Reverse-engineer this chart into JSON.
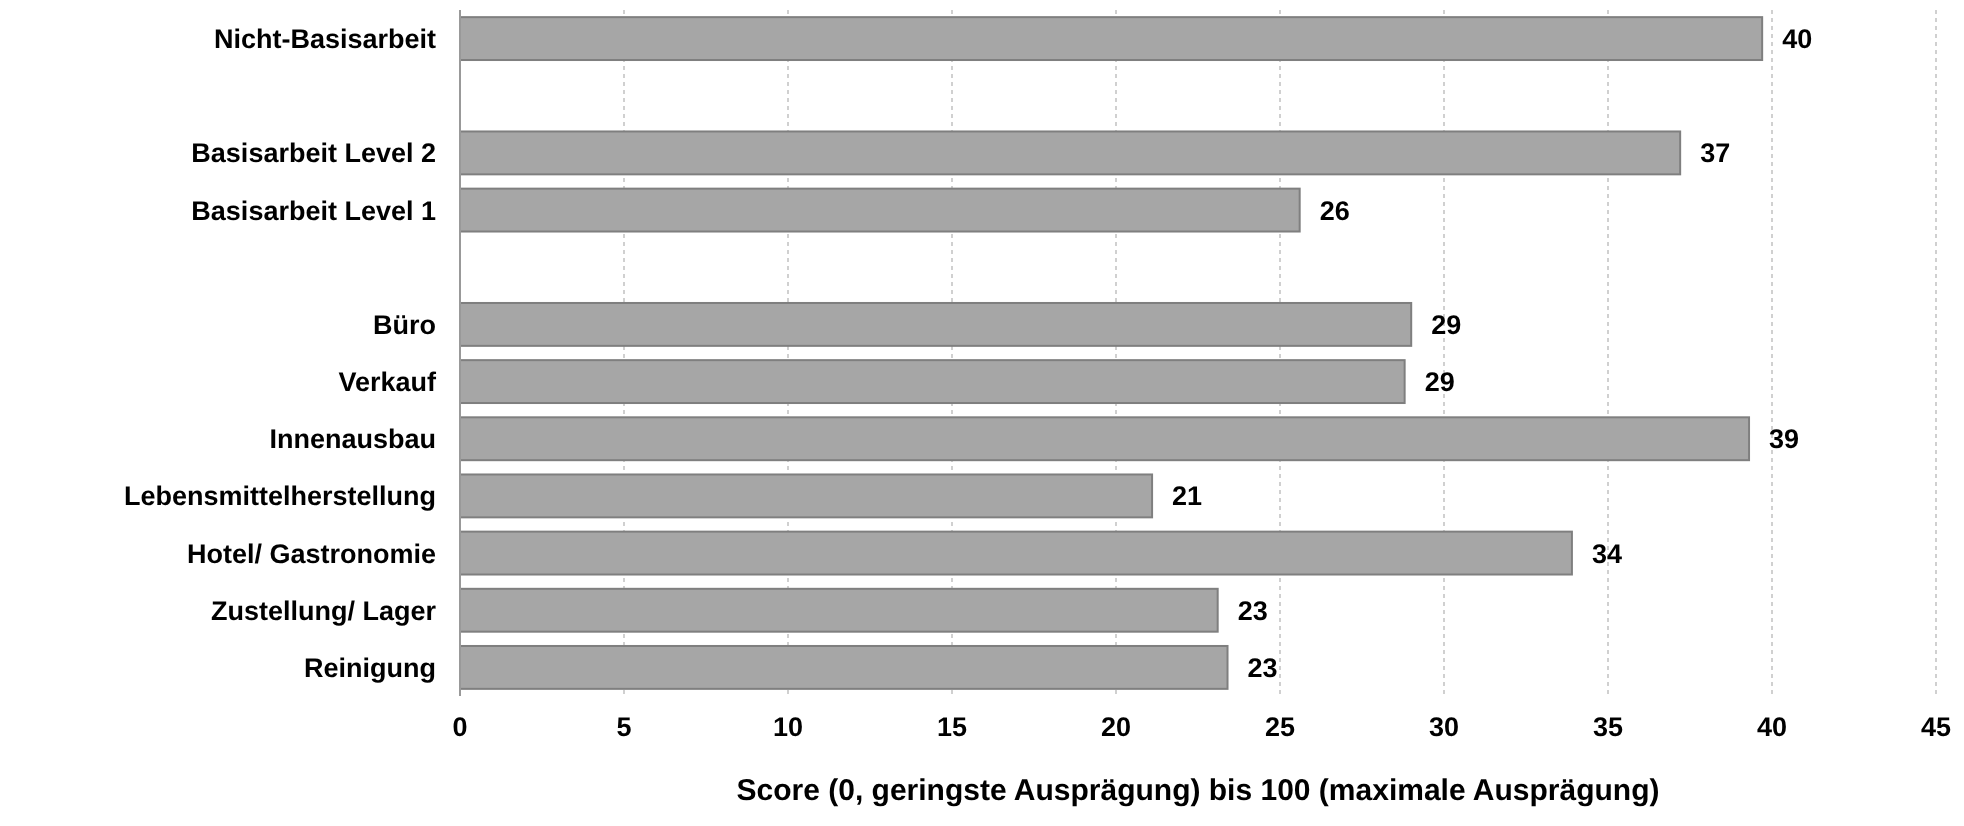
{
  "chart_data": {
    "type": "bar",
    "orientation": "horizontal",
    "xlabel": "Score (0, geringste Ausprägung) bis 100 (maximale Ausprägung)",
    "categories": [
      "Nicht-Basisarbeit",
      null,
      "Basisarbeit Level 2",
      "Basisarbeit Level 1",
      null,
      "Büro",
      "Verkauf",
      "Innenausbau",
      "Lebensmittelherstellung",
      "Hotel/ Gastronomie",
      "Zustellung/ Lager",
      "Reinigung"
    ],
    "values": [
      39.7,
      null,
      37.2,
      25.6,
      null,
      29.0,
      28.8,
      39.3,
      21.1,
      33.9,
      23.1,
      23.4
    ],
    "value_labels": [
      "40",
      null,
      "37",
      "26",
      null,
      "29",
      "29",
      "39",
      "21",
      "34",
      "23",
      "23"
    ],
    "color": "#a6a6a6",
    "xlim": [
      0,
      45
    ],
    "xticks": [
      0,
      5,
      10,
      15,
      20,
      25,
      30,
      35,
      40,
      45
    ],
    "grid": "x"
  }
}
